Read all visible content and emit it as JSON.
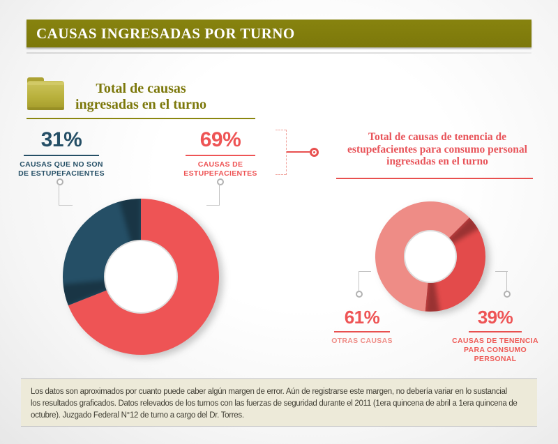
{
  "header": {
    "title": "CAUSAS INGRESADAS POR TURNO"
  },
  "left_chart": {
    "title": "Total de causas\ningresadas en el turno",
    "stats": [
      {
        "percent": "31%",
        "label": "CAUSAS QUE NO SON\nDE ESTUPEFACIENTES",
        "color": "#254F66"
      },
      {
        "percent": "69%",
        "label": "CAUSAS DE\nESTUPEFACIENTES",
        "color": "#EE5455"
      }
    ]
  },
  "right_chart": {
    "title": "Total de causas de tenencia de\nestupefacientes para consumo personal\ningresadas en el turno",
    "stats": [
      {
        "percent": "61%",
        "label": "OTRAS CAUSAS",
        "color": "#EE8C86"
      },
      {
        "percent": "39%",
        "label": "CAUSAS DE TENENCIA\nPARA CONSUMO\nPERSONAL",
        "color": "#E34B4B"
      }
    ]
  },
  "footer": {
    "text": "Los datos son aproximados por cuanto puede caber algún margen de error. Aún de registrarse este margen, no debería variar en lo sustancial\nlos resultados graficados. Datos relevados de los turnos con las fuerzas de seguridad durante el 2011 (1era quincena de abril a 1era quincena de\noctubre). Juzgado Federal N°12 de turno a cargo del Dr. Torres."
  },
  "colors": {
    "olive_bar": "#7C780A",
    "olive_title": "#7C780B",
    "dark_blue": "#254F66",
    "red": "#EE5455",
    "strong_red": "#E34B4B",
    "pink": "#EE8C86",
    "title_red": "#E8545A",
    "connector_gray": "#C3C3C3",
    "footer_bg": "#EDEAD9"
  },
  "chart_data": [
    {
      "type": "pie",
      "subtype": "donut",
      "title": "Total de causas ingresadas en el turno",
      "start_angle": 0,
      "slices": [
        {
          "label": "CAUSAS DE ESTUPEFACIENTES",
          "value": 69,
          "display": "69%",
          "color": "#EE5455"
        },
        {
          "label": "CAUSAS QUE NO SON DE ESTUPEFACIENTES",
          "value": 31,
          "display": "31%",
          "color": "#254F66"
        }
      ]
    },
    {
      "type": "pie",
      "subtype": "donut",
      "title": "Total de causas de tenencia de estupefacientes para consumo personal ingresadas en el turno",
      "start_angle": 45,
      "slices": [
        {
          "label": "CAUSAS DE TENENCIA PARA CONSUMO PERSONAL",
          "value": 39,
          "display": "39%",
          "color": "#E34B4B"
        },
        {
          "label": "OTRAS CAUSAS",
          "value": 61,
          "display": "61%",
          "color": "#EE8C86"
        }
      ]
    }
  ]
}
